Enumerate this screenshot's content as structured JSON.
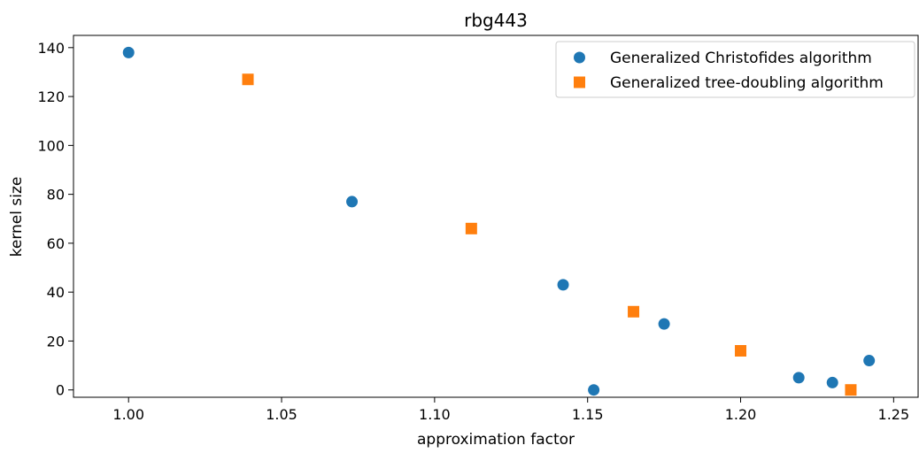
{
  "chart_data": {
    "type": "scatter",
    "title": "rbg443",
    "xlabel": "approximation factor",
    "ylabel": "kernel size",
    "xlim": [
      0.982,
      1.258
    ],
    "ylim": [
      -3,
      145
    ],
    "xticks": [
      1.0,
      1.05,
      1.1,
      1.15,
      1.2,
      1.25
    ],
    "xtick_labels": [
      "1.00",
      "1.05",
      "1.10",
      "1.15",
      "1.20",
      "1.25"
    ],
    "yticks": [
      0,
      20,
      40,
      60,
      80,
      100,
      120,
      140
    ],
    "ytick_labels": [
      "0",
      "20",
      "40",
      "60",
      "80",
      "100",
      "120",
      "140"
    ],
    "grid": false,
    "legend_position": "top-right",
    "series": [
      {
        "name": "Generalized Christofides algorithm",
        "marker": "circle",
        "color": "#1f77b4",
        "points": [
          {
            "x": 1.0,
            "y": 138
          },
          {
            "x": 1.073,
            "y": 77
          },
          {
            "x": 1.142,
            "y": 43
          },
          {
            "x": 1.152,
            "y": 0
          },
          {
            "x": 1.175,
            "y": 27
          },
          {
            "x": 1.219,
            "y": 5
          },
          {
            "x": 1.23,
            "y": 3
          },
          {
            "x": 1.242,
            "y": 12
          }
        ]
      },
      {
        "name": "Generalized tree-doubling algorithm",
        "marker": "square",
        "color": "#ff7f0e",
        "points": [
          {
            "x": 1.039,
            "y": 127
          },
          {
            "x": 1.112,
            "y": 66
          },
          {
            "x": 1.165,
            "y": 32
          },
          {
            "x": 1.2,
            "y": 16
          },
          {
            "x": 1.236,
            "y": 0
          }
        ]
      }
    ]
  }
}
